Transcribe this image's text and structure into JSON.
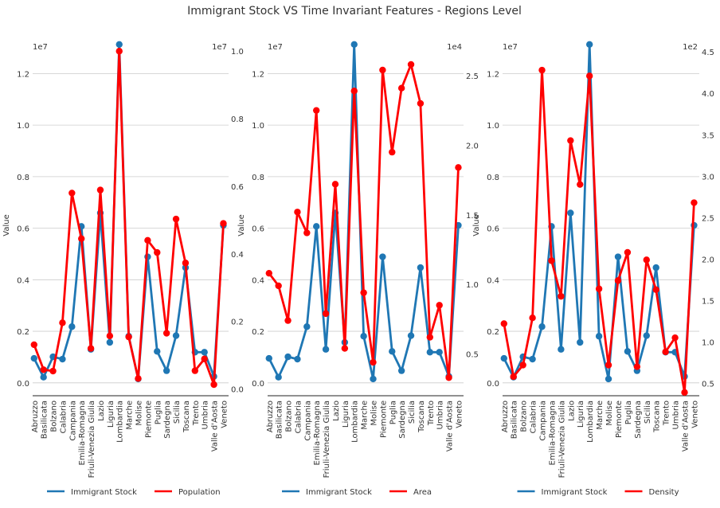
{
  "title": "Immigrant Stock VS Time Invariant Features - Regions Level",
  "colors": {
    "primary": "#1f77b4",
    "secondary": "#ff0000",
    "grid": "#cccccc",
    "axis": "#222222"
  },
  "chart_data": [
    {
      "type": "line",
      "categories": [
        "Abruzzo",
        "Basilicata",
        "Bolzano",
        "Calabria",
        "Campania",
        "Emilia-Romagna",
        "Friuli-Venezia Giulia",
        "Lazio",
        "Liguria",
        "Lombardia",
        "Marche",
        "Molise",
        "Piemonte",
        "Puglia",
        "Sardegna",
        "Sicilia",
        "Toscana",
        "Trento",
        "Umbria",
        "Valle d'Aosta",
        "Veneto"
      ],
      "ylabel": "Value",
      "left_axis": {
        "multiplier": "1e7",
        "ylim": [
          -0.05,
          1.3
        ],
        "ticks": [
          0.0,
          0.2,
          0.4,
          0.6,
          0.8,
          1.0,
          1.2
        ],
        "tick_labels": [
          "0.0",
          "0.2",
          "0.4",
          "0.6",
          "0.8",
          "1.0",
          "1.2"
        ]
      },
      "right_axis": {
        "multiplier": "1e7",
        "ylim": [
          -0.02,
          1.01
        ],
        "ticks": [
          0.0,
          0.2,
          0.4,
          0.6,
          0.8,
          1.0
        ],
        "tick_labels": [
          "0.0",
          "0.2",
          "0.4",
          "0.6",
          "0.8",
          "1.0"
        ]
      },
      "series": [
        {
          "name": "Immigrant Stock",
          "axis": "left",
          "color": "#1f77b4",
          "values": [
            0.095,
            0.022,
            0.101,
            0.092,
            0.218,
            0.607,
            0.13,
            0.659,
            0.157,
            1.313,
            0.181,
            0.015,
            0.489,
            0.122,
            0.047,
            0.183,
            0.447,
            0.119,
            0.119,
            0.025,
            0.611
          ]
        },
        {
          "name": "Population",
          "axis": "right",
          "color": "#ff0000",
          "values": [
            0.131,
            0.057,
            0.053,
            0.196,
            0.58,
            0.445,
            0.12,
            0.589,
            0.157,
            1.0,
            0.154,
            0.031,
            0.44,
            0.404,
            0.165,
            0.503,
            0.373,
            0.054,
            0.089,
            0.013,
            0.49
          ]
        }
      ],
      "legend": "bottom-center",
      "grid": true
    },
    {
      "type": "line",
      "categories": [
        "Abruzzo",
        "Basilicata",
        "Bolzano",
        "Calabria",
        "Campania",
        "Emilia-Romagna",
        "Friuli-Venezia Giulia",
        "Lazio",
        "Liguria",
        "Lombardia",
        "Marche",
        "Molise",
        "Piemonte",
        "Puglia",
        "Sardegna",
        "Sicilia",
        "Toscana",
        "Trento",
        "Umbria",
        "Valle d'Aosta",
        "Veneto"
      ],
      "ylabel": "Value",
      "left_axis": {
        "multiplier": "1e7",
        "ylim": [
          -0.05,
          1.3
        ],
        "ticks": [
          0.0,
          0.2,
          0.4,
          0.6,
          0.8,
          1.0,
          1.2
        ],
        "tick_labels": [
          "0.0",
          "0.2",
          "0.4",
          "0.6",
          "0.8",
          "1.0",
          "1.2"
        ]
      },
      "right_axis": {
        "multiplier": "1e4",
        "ylim": [
          0.2,
          2.7
        ],
        "ticks": [
          0.5,
          1.0,
          1.5,
          2.0,
          2.5
        ],
        "tick_labels": [
          "0.5",
          "1.0",
          "1.5",
          "2.0",
          "2.5"
        ]
      },
      "series": [
        {
          "name": "Immigrant Stock",
          "axis": "left",
          "color": "#1f77b4",
          "values": [
            0.095,
            0.022,
            0.101,
            0.092,
            0.218,
            0.607,
            0.13,
            0.659,
            0.157,
            1.313,
            0.181,
            0.015,
            0.489,
            0.122,
            0.047,
            0.183,
            0.447,
            0.119,
            0.119,
            0.025,
            0.611
          ]
        },
        {
          "name": "Area",
          "axis": "right",
          "color": "#ff0000",
          "values": [
            1.08,
            0.99,
            0.74,
            1.52,
            1.37,
            2.25,
            0.79,
            1.72,
            0.54,
            2.39,
            0.94,
            0.44,
            2.54,
            1.95,
            2.41,
            2.58,
            2.3,
            0.62,
            0.85,
            0.33,
            1.84
          ]
        }
      ],
      "legend": "bottom-center",
      "grid": true
    },
    {
      "type": "line",
      "categories": [
        "Abruzzo",
        "Basilicata",
        "Bolzano",
        "Calabria",
        "Campania",
        "Emilia-Romagna",
        "Friuli-Venezia Giulia",
        "Lazio",
        "Liguria",
        "Lombardia",
        "Marche",
        "Molise",
        "Piemonte",
        "Puglia",
        "Sardegna",
        "Sicilia",
        "Toscana",
        "Trento",
        "Umbria",
        "Valle d'Aosta",
        "Veneto"
      ],
      "ylabel": "Value",
      "left_axis": {
        "multiplier": "1e7",
        "ylim": [
          -0.05,
          1.3
        ],
        "ticks": [
          0.0,
          0.2,
          0.4,
          0.6,
          0.8,
          1.0,
          1.2
        ],
        "tick_labels": [
          "0.0",
          "0.2",
          "0.4",
          "0.6",
          "0.8",
          "1.0",
          "1.2"
        ]
      },
      "right_axis": {
        "multiplier": "1e2",
        "ylim": [
          0.35,
          4.55
        ],
        "ticks": [
          0.5,
          1.0,
          1.5,
          2.0,
          2.5,
          3.0,
          3.5,
          4.0,
          4.5
        ],
        "tick_labels": [
          "0.5",
          "1.0",
          "1.5",
          "2.0",
          "2.5",
          "3.0",
          "3.5",
          "4.0",
          "4.5"
        ]
      },
      "series": [
        {
          "name": "Immigrant Stock",
          "axis": "left",
          "color": "#1f77b4",
          "values": [
            0.095,
            0.022,
            0.101,
            0.092,
            0.218,
            0.607,
            0.13,
            0.659,
            0.157,
            1.313,
            0.181,
            0.015,
            0.489,
            0.122,
            0.047,
            0.183,
            0.447,
            0.119,
            0.119,
            0.025,
            0.611
          ]
        },
        {
          "name": "Density",
          "axis": "right",
          "color": "#ff0000",
          "values": [
            1.22,
            0.58,
            0.72,
            1.29,
            4.28,
            1.98,
            1.55,
            3.43,
            2.9,
            4.21,
            1.64,
            0.72,
            1.74,
            2.08,
            0.7,
            1.99,
            1.63,
            0.88,
            1.05,
            0.39,
            2.68
          ]
        }
      ],
      "legend": "bottom-center",
      "grid": true
    }
  ]
}
